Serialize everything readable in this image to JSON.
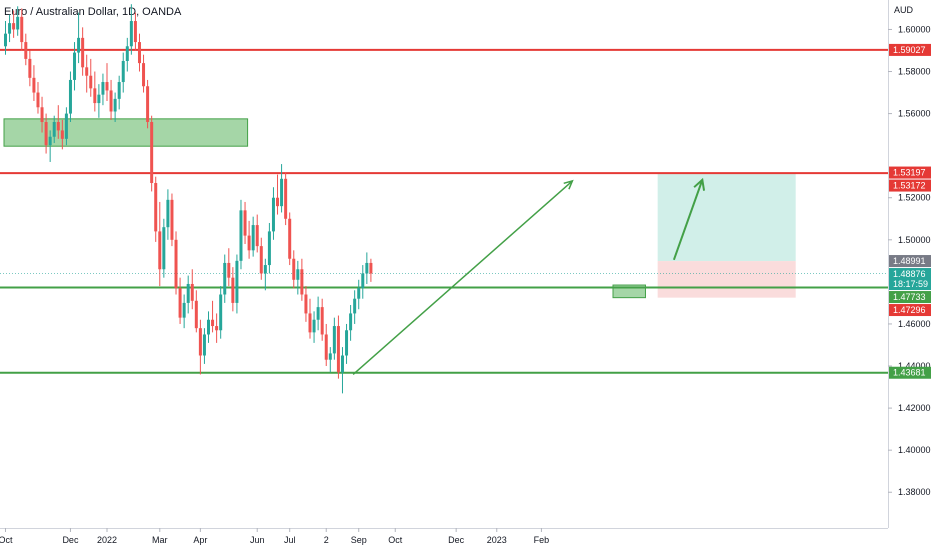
{
  "header": {
    "title": "Euro / Australian Dollar, 1D, OANDA"
  },
  "chart_data": {
    "type": "candlestick",
    "currency_label": "AUD",
    "ylim": [
      1.363,
      1.614
    ],
    "y_ticks": [
      "1.60000",
      "1.58000",
      "1.56000",
      "1.52000",
      "1.50000",
      "1.46000",
      "1.44000",
      "1.42000",
      "1.40000",
      "1.38000"
    ],
    "x_ticks": [
      "Oct",
      "Dec",
      "2022",
      "Mar",
      "Apr",
      "Jun",
      "Jul",
      "2",
      "Sep",
      "Oct",
      "Dec",
      "2023",
      "Feb"
    ],
    "x_tick_index": [
      0,
      16,
      25,
      38,
      48,
      62,
      70,
      79,
      87,
      96,
      111,
      121,
      132
    ],
    "bars_total_span": 140,
    "bull_color": "#26a69a",
    "bear_color": "#ef5350",
    "candles": [
      [
        1.592,
        1.604,
        1.588,
        1.598
      ],
      [
        1.598,
        1.607,
        1.594,
        1.603
      ],
      [
        1.603,
        1.609,
        1.596,
        1.6
      ],
      [
        1.6,
        1.611,
        1.597,
        1.606
      ],
      [
        1.606,
        1.61,
        1.59,
        1.594
      ],
      [
        1.594,
        1.598,
        1.583,
        1.586
      ],
      [
        1.586,
        1.59,
        1.573,
        1.577
      ],
      [
        1.577,
        1.583,
        1.566,
        1.57
      ],
      [
        1.57,
        1.575,
        1.56,
        1.563
      ],
      [
        1.563,
        1.568,
        1.551,
        1.556
      ],
      [
        1.556,
        1.56,
        1.541,
        1.545
      ],
      [
        1.545,
        1.552,
        1.537,
        1.549
      ],
      [
        1.549,
        1.559,
        1.546,
        1.556
      ],
      [
        1.556,
        1.564,
        1.548,
        1.552
      ],
      [
        1.552,
        1.557,
        1.543,
        1.548
      ],
      [
        1.548,
        1.563,
        1.545,
        1.56
      ],
      [
        1.56,
        1.58,
        1.556,
        1.576
      ],
      [
        1.576,
        1.594,
        1.571,
        1.589
      ],
      [
        1.589,
        1.608,
        1.584,
        1.596
      ],
      [
        1.596,
        1.601,
        1.578,
        1.582
      ],
      [
        1.582,
        1.588,
        1.57,
        1.578
      ],
      [
        1.578,
        1.586,
        1.568,
        1.572
      ],
      [
        1.572,
        1.58,
        1.561,
        1.565
      ],
      [
        1.565,
        1.574,
        1.558,
        1.569
      ],
      [
        1.569,
        1.579,
        1.564,
        1.575
      ],
      [
        1.575,
        1.584,
        1.566,
        1.571
      ],
      [
        1.571,
        1.576,
        1.557,
        1.561
      ],
      [
        1.561,
        1.57,
        1.556,
        1.567
      ],
      [
        1.567,
        1.578,
        1.562,
        1.575
      ],
      [
        1.575,
        1.589,
        1.57,
        1.585
      ],
      [
        1.585,
        1.596,
        1.58,
        1.592
      ],
      [
        1.592,
        1.612,
        1.588,
        1.604
      ],
      [
        1.604,
        1.608,
        1.59,
        1.594
      ],
      [
        1.594,
        1.598,
        1.58,
        1.584
      ],
      [
        1.584,
        1.588,
        1.57,
        1.573
      ],
      [
        1.573,
        1.576,
        1.553,
        1.556
      ],
      [
        1.556,
        1.559,
        1.523,
        1.527
      ],
      [
        1.527,
        1.53,
        1.499,
        1.504
      ],
      [
        1.504,
        1.518,
        1.478,
        1.486
      ],
      [
        1.486,
        1.51,
        1.482,
        1.506
      ],
      [
        1.506,
        1.524,
        1.5,
        1.519
      ],
      [
        1.519,
        1.522,
        1.497,
        1.5
      ],
      [
        1.5,
        1.504,
        1.474,
        1.477
      ],
      [
        1.477,
        1.482,
        1.46,
        1.463
      ],
      [
        1.463,
        1.474,
        1.458,
        1.47
      ],
      [
        1.47,
        1.483,
        1.465,
        1.479
      ],
      [
        1.479,
        1.486,
        1.467,
        1.471
      ],
      [
        1.471,
        1.476,
        1.456,
        1.458
      ],
      [
        1.458,
        1.462,
        1.436,
        1.445
      ],
      [
        1.445,
        1.458,
        1.441,
        1.455
      ],
      [
        1.455,
        1.466,
        1.451,
        1.462
      ],
      [
        1.462,
        1.471,
        1.456,
        1.459
      ],
      [
        1.459,
        1.465,
        1.451,
        1.457
      ],
      [
        1.457,
        1.478,
        1.453,
        1.474
      ],
      [
        1.474,
        1.493,
        1.47,
        1.489
      ],
      [
        1.489,
        1.496,
        1.478,
        1.482
      ],
      [
        1.482,
        1.487,
        1.466,
        1.47
      ],
      [
        1.47,
        1.493,
        1.465,
        1.49
      ],
      [
        1.49,
        1.519,
        1.486,
        1.514
      ],
      [
        1.514,
        1.518,
        1.498,
        1.502
      ],
      [
        1.502,
        1.509,
        1.491,
        1.495
      ],
      [
        1.495,
        1.511,
        1.492,
        1.507
      ],
      [
        1.507,
        1.512,
        1.494,
        1.497
      ],
      [
        1.497,
        1.501,
        1.481,
        1.484
      ],
      [
        1.484,
        1.491,
        1.476,
        1.488
      ],
      [
        1.488,
        1.508,
        1.484,
        1.504
      ],
      [
        1.504,
        1.525,
        1.5,
        1.52
      ],
      [
        1.52,
        1.531,
        1.512,
        1.516
      ],
      [
        1.516,
        1.536,
        1.513,
        1.529
      ],
      [
        1.529,
        1.532,
        1.507,
        1.51
      ],
      [
        1.51,
        1.513,
        1.488,
        1.491
      ],
      [
        1.491,
        1.495,
        1.477,
        1.481
      ],
      [
        1.481,
        1.49,
        1.474,
        1.486
      ],
      [
        1.486,
        1.491,
        1.471,
        1.474
      ],
      [
        1.474,
        1.478,
        1.461,
        1.465
      ],
      [
        1.465,
        1.472,
        1.453,
        1.456
      ],
      [
        1.456,
        1.466,
        1.451,
        1.462
      ],
      [
        1.462,
        1.473,
        1.457,
        1.468
      ],
      [
        1.468,
        1.472,
        1.452,
        1.455
      ],
      [
        1.455,
        1.46,
        1.44,
        1.443
      ],
      [
        1.443,
        1.449,
        1.437,
        1.446
      ],
      [
        1.446,
        1.463,
        1.443,
        1.459
      ],
      [
        1.459,
        1.464,
        1.434,
        1.437
      ],
      [
        1.437,
        1.449,
        1.427,
        1.445
      ],
      [
        1.445,
        1.46,
        1.441,
        1.457
      ],
      [
        1.457,
        1.469,
        1.452,
        1.465
      ],
      [
        1.465,
        1.476,
        1.46,
        1.472
      ],
      [
        1.472,
        1.481,
        1.467,
        1.477
      ],
      [
        1.477,
        1.488,
        1.472,
        1.484
      ],
      [
        1.484,
        1.494,
        1.479,
        1.489
      ],
      [
        1.489,
        1.491,
        1.48,
        1.484
      ]
    ],
    "price_levels": [
      {
        "label": "1.59027",
        "value": 1.59027,
        "color": "#e53935",
        "line": true
      },
      {
        "label": "1.53197",
        "value": 1.53197,
        "color": "#e53935",
        "line": false
      },
      {
        "label": "1.53172",
        "value": 1.53172,
        "color": "#e53935",
        "line": true
      },
      {
        "label": "1.48991",
        "value": 1.48991,
        "color": "#787b86",
        "line": false
      },
      {
        "label": "1.48876",
        "value": 1.48876,
        "color": "#26a69a",
        "line": false,
        "countdown": "18:17:59"
      },
      {
        "label": "1.47733",
        "value": 1.47733,
        "color": "#43a047",
        "line": true
      },
      {
        "label": "1.47296",
        "value": 1.47296,
        "color": "#e53935",
        "line": false
      },
      {
        "label": "1.43681",
        "value": 1.43681,
        "color": "#43a047",
        "line": true
      }
    ],
    "zones": [
      {
        "name": "support-zone-left",
        "x_index": [
          0,
          60
        ],
        "y": [
          1.5445,
          1.5575
        ],
        "color": "#a5d6a7",
        "border": "#43a047"
      },
      {
        "name": "support-zone-right",
        "x_index": [
          150,
          158
        ],
        "y": [
          1.4725,
          1.4785
        ],
        "color": "#a5d6a7",
        "border": "#43a047"
      },
      {
        "name": "target-zone",
        "x_index": [
          161,
          195
        ],
        "y": [
          1.4899,
          1.5317
        ],
        "color": "#d1efe9",
        "border": "none"
      },
      {
        "name": "stop-zone",
        "x_index": [
          161,
          195
        ],
        "y": [
          1.4725,
          1.4899
        ],
        "color": "#fadcdc",
        "border": "none"
      }
    ],
    "trendline": {
      "from": [
        86,
        1.436
      ],
      "to": [
        140,
        1.528
      ],
      "color": "#43a047"
    },
    "projection_arrow": {
      "from": [
        165,
        1.4905
      ],
      "to": [
        172,
        1.5285
      ],
      "color": "#43a047"
    }
  }
}
